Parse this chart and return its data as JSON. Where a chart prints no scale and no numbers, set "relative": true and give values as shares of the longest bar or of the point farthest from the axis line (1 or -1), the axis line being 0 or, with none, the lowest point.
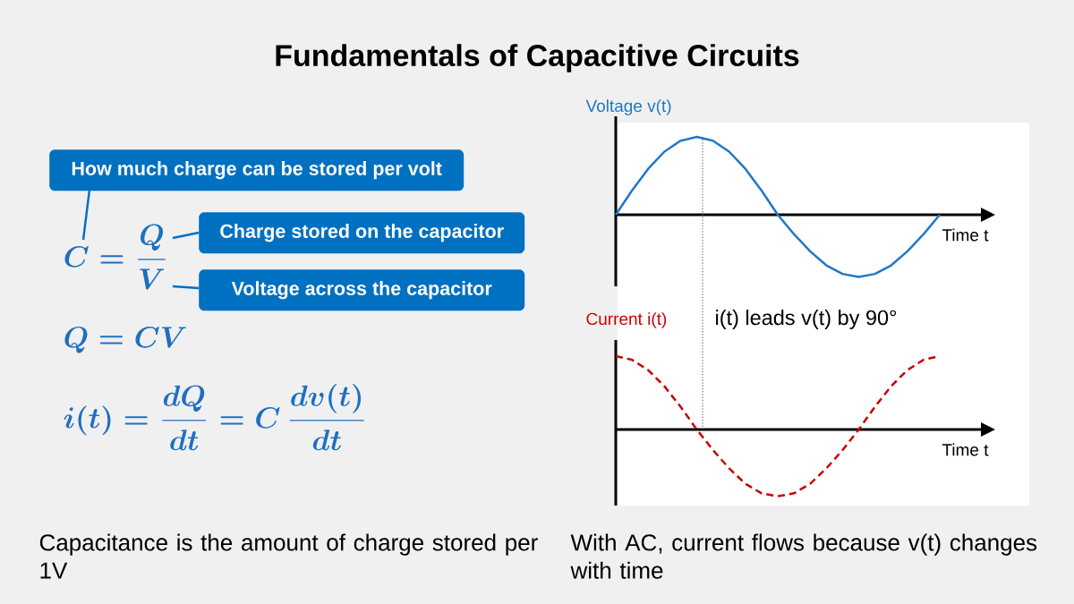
{
  "chart_data": [
    {
      "type": "other",
      "title": "Fundamentals of Capacitive Circuits",
      "annotations": [
        "How much charge can be stored per volt",
        "Charge stored on the capacitor",
        "Voltage across the capacitor",
        "C = \\frac{Q}{V}",
        "Q = CV",
        "i(t) = \\frac{dQ}{dt} = C\\,\\frac{dv(t)}{dt}",
        "Capacitance is the amount of charge stored per 1V"
      ]
    },
    {
      "type": "line",
      "relative": true,
      "ylabel": "Voltage v(t)",
      "xlabel": "Time t",
      "categories": [
        null,
        null,
        null,
        null,
        null,
        null,
        null,
        null,
        null,
        null,
        null,
        null,
        null,
        null,
        null,
        null,
        null,
        null,
        null,
        null,
        null
      ],
      "series": [
        {
          "color": "#1f78c8",
          "values": [
            0,
            0.31,
            0.59,
            0.81,
            0.95,
            1,
            0.95,
            0.81,
            0.59,
            0.31,
            0,
            -0.25,
            -0.47,
            -0.65,
            -0.76,
            -0.8,
            -0.76,
            -0.65,
            -0.47,
            -0.25,
            0
          ]
        }
      ],
      "line_style": "solid"
    },
    {
      "type": "line",
      "relative": true,
      "ylabel": "Current i(t)",
      "xlabel": "Time t",
      "categories": [
        null,
        null,
        null,
        null,
        null,
        null,
        null,
        null,
        null,
        null,
        null,
        null,
        null,
        null,
        null,
        null,
        null,
        null,
        null,
        null,
        null
      ],
      "series": [
        {
          "color": "#cc0000",
          "values": [
            1,
            0.95,
            0.81,
            0.59,
            0.31,
            0,
            -0.28,
            -0.53,
            -0.74,
            -0.87,
            -0.91,
            -0.87,
            -0.74,
            -0.53,
            -0.28,
            0,
            0.31,
            0.59,
            0.81,
            0.95,
            1
          ]
        }
      ],
      "line_style": "dashed",
      "annotations": [
        "i(t) leads v(t) by 90°",
        "With AC, current flows because v(t) changes with time"
      ]
    }
  ]
}
